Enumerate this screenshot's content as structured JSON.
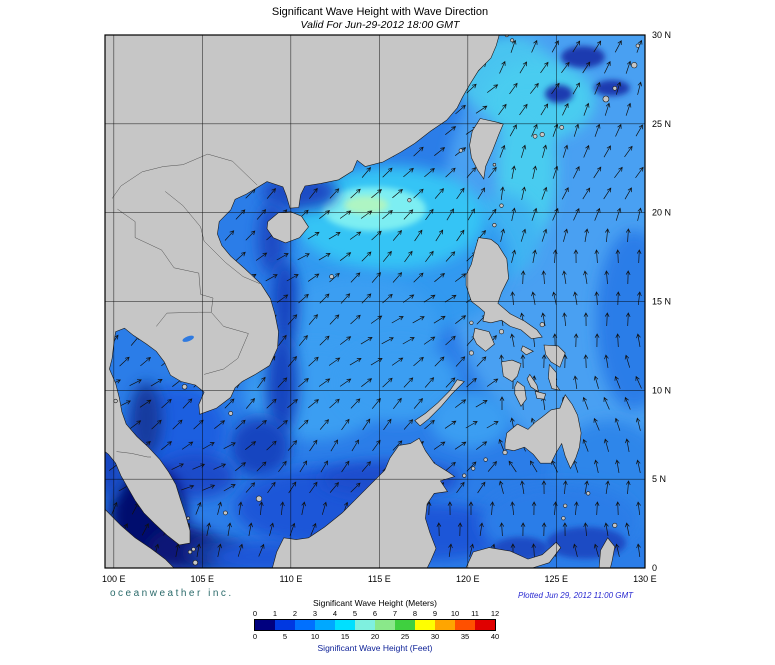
{
  "title": "Significant Wave Height with Wave Direction",
  "subtitle": "Valid For Jun-29-2012 18:00 GMT",
  "credits": {
    "left": "oceanweather inc.",
    "right": "Plotted Jun 29, 2012 11:00 GMT"
  },
  "axes": {
    "lon_labels": [
      "100 E",
      "105 E",
      "110 E",
      "115 E",
      "120 E",
      "125 E",
      "130 E"
    ],
    "lon_values": [
      100,
      105,
      110,
      115,
      120,
      125,
      130
    ],
    "lat_labels": [
      "0",
      "5 N",
      "10 N",
      "15 N",
      "20 N",
      "25 N",
      "30 N"
    ],
    "lat_values": [
      0,
      5,
      10,
      15,
      20,
      25,
      30
    ]
  },
  "colorbar": {
    "title_meters": "Significant Wave Height (Meters)",
    "title_feet": "Significant Wave Height (Feet)",
    "meter_ticks": [
      0,
      1,
      2,
      3,
      4,
      5,
      6,
      7,
      8,
      9,
      10,
      11,
      12
    ],
    "feet_ticks": [
      0,
      5,
      10,
      15,
      20,
      25,
      30,
      35,
      40
    ],
    "colors": [
      "#00007f",
      "#0038e1",
      "#0070ff",
      "#00a8ff",
      "#00e0ff",
      "#7ff0df",
      "#8ae88a",
      "#3fd03f",
      "#ffff00",
      "#ffa500",
      "#ff5000",
      "#e00000"
    ]
  },
  "map": {
    "land_color": "#c6c6c6",
    "sea_base_color": "#2b7de8",
    "grid_color": "#000000",
    "arrow_color": "#101010",
    "coast_color": "#1a1a1a"
  }
}
